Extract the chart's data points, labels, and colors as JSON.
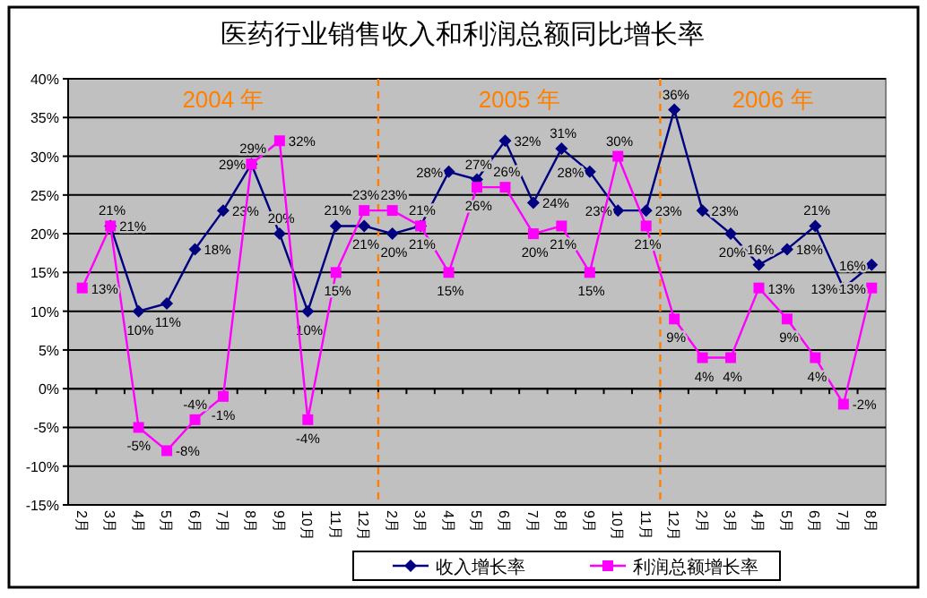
{
  "chart_data": {
    "type": "line",
    "title": "医药行业销售收入和利润总额同比增长率",
    "categories": [
      "2月",
      "3月",
      "4月",
      "5月",
      "6月",
      "7月",
      "8月",
      "9月",
      "10月",
      "11月",
      "12月",
      "2月",
      "3月",
      "4月",
      "5月",
      "6月",
      "7月",
      "8月",
      "9月",
      "10月",
      "11月",
      "12月",
      "2月",
      "3月",
      "4月",
      "5月",
      "6月",
      "7月",
      "8月"
    ],
    "series": [
      {
        "name": "收入增长率",
        "color": "#000080",
        "marker": "diamond",
        "values": [
          null,
          21,
          10,
          11,
          18,
          23,
          29,
          20,
          10,
          21,
          21,
          20,
          21,
          28,
          27,
          32,
          24,
          31,
          28,
          23,
          23,
          36,
          23,
          20,
          16,
          18,
          21,
          13,
          16
        ],
        "value_labels": [
          null,
          "21%",
          "10%",
          "11%",
          "18%",
          "23%",
          "29%",
          "20%",
          "10%",
          "21%",
          "21%",
          "20%",
          "21%",
          "28%",
          "27%",
          "32%",
          "24%",
          "31%",
          "28%",
          "23%",
          "23%",
          "36%",
          "23%",
          "20%",
          "16%",
          "18%",
          "21%",
          "13%",
          "16%"
        ]
      },
      {
        "name": "利润总额增长率",
        "color": "#ff00ff",
        "marker": "square",
        "values": [
          13,
          21,
          -5,
          -8,
          -4,
          -1,
          29,
          32,
          -4,
          15,
          23,
          23,
          21,
          15,
          26,
          26,
          20,
          21,
          15,
          30,
          21,
          9,
          4,
          4,
          13,
          9,
          4,
          -2,
          13
        ],
        "value_labels": [
          "13%",
          "21%",
          "-5%",
          "-8%",
          "-4%",
          "-1%",
          "29%",
          "32%",
          "-4%",
          "15%",
          "23%",
          "23%",
          "21%",
          "15%",
          "26%",
          "26%",
          "20%",
          "21%",
          "15%",
          "30%",
          "21%",
          "9%",
          "4%",
          "4%",
          "13%",
          "9%",
          "4%",
          "-2%",
          "13%"
        ]
      }
    ],
    "ylim": [
      -15,
      40
    ],
    "yticks": [
      {
        "value": -15,
        "label": "-15%"
      },
      {
        "value": -10,
        "label": "-10%"
      },
      {
        "value": -5,
        "label": "-5%"
      },
      {
        "value": 0,
        "label": "0%"
      },
      {
        "value": 5,
        "label": "5%"
      },
      {
        "value": 10,
        "label": "10%"
      },
      {
        "value": 15,
        "label": "15%"
      },
      {
        "value": 20,
        "label": "20%"
      },
      {
        "value": 25,
        "label": "25%"
      },
      {
        "value": 30,
        "label": "30%"
      },
      {
        "value": 35,
        "label": "35%"
      },
      {
        "value": 40,
        "label": "40%"
      }
    ],
    "grid": "y",
    "legend": "bottom",
    "annotations": [
      "2004 年",
      "2005 年",
      "2006 年"
    ]
  }
}
